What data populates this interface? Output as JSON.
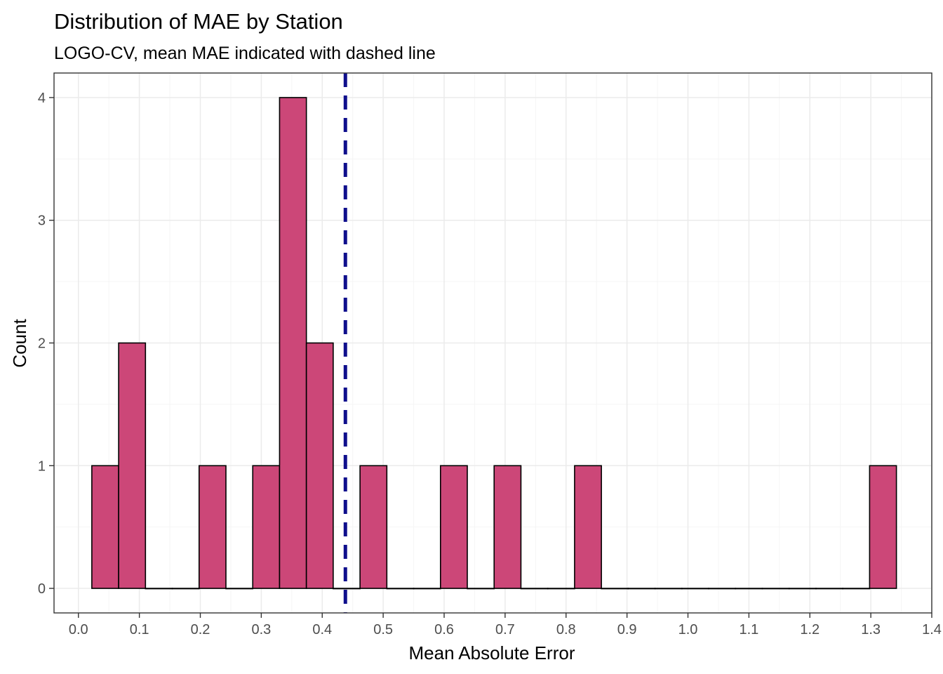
{
  "chart_data": {
    "type": "bar",
    "subtype": "histogram",
    "title": "Distribution of MAE by Station",
    "subtitle": "LOGO-CV, mean MAE indicated with dashed line",
    "xlabel": "Mean Absolute Error",
    "ylabel": "Count",
    "xlim": [
      -0.04,
      1.4
    ],
    "ylim": [
      -0.2,
      4.2
    ],
    "x_ticks": [
      "0.0",
      "0.1",
      "0.2",
      "0.3",
      "0.4",
      "0.5",
      "0.6",
      "0.7",
      "0.8",
      "0.9",
      "1.0",
      "1.1",
      "1.2",
      "1.3",
      "1.4"
    ],
    "y_ticks": [
      "0",
      "1",
      "2",
      "3",
      "4"
    ],
    "bin_width": 0.044,
    "bins": [
      {
        "x0": 0.022,
        "x1": 0.066,
        "count": 1
      },
      {
        "x0": 0.066,
        "x1": 0.11,
        "count": 2
      },
      {
        "x0": 0.11,
        "x1": 0.154,
        "count": 0
      },
      {
        "x0": 0.154,
        "x1": 0.198,
        "count": 0
      },
      {
        "x0": 0.198,
        "x1": 0.242,
        "count": 1
      },
      {
        "x0": 0.242,
        "x1": 0.286,
        "count": 0
      },
      {
        "x0": 0.286,
        "x1": 0.33,
        "count": 1
      },
      {
        "x0": 0.33,
        "x1": 0.374,
        "count": 4
      },
      {
        "x0": 0.374,
        "x1": 0.418,
        "count": 2
      },
      {
        "x0": 0.418,
        "x1": 0.462,
        "count": 0
      },
      {
        "x0": 0.462,
        "x1": 0.506,
        "count": 1
      },
      {
        "x0": 0.506,
        "x1": 0.55,
        "count": 0
      },
      {
        "x0": 0.55,
        "x1": 0.594,
        "count": 0
      },
      {
        "x0": 0.594,
        "x1": 0.638,
        "count": 1
      },
      {
        "x0": 0.638,
        "x1": 0.682,
        "count": 0
      },
      {
        "x0": 0.682,
        "x1": 0.726,
        "count": 1
      },
      {
        "x0": 0.726,
        "x1": 0.77,
        "count": 0
      },
      {
        "x0": 0.77,
        "x1": 0.814,
        "count": 0
      },
      {
        "x0": 0.814,
        "x1": 0.858,
        "count": 1
      },
      {
        "x0": 0.858,
        "x1": 0.902,
        "count": 0
      },
      {
        "x0": 0.902,
        "x1": 0.946,
        "count": 0
      },
      {
        "x0": 0.946,
        "x1": 0.99,
        "count": 0
      },
      {
        "x0": 0.99,
        "x1": 1.034,
        "count": 0
      },
      {
        "x0": 1.034,
        "x1": 1.078,
        "count": 0
      },
      {
        "x0": 1.078,
        "x1": 1.122,
        "count": 0
      },
      {
        "x0": 1.122,
        "x1": 1.166,
        "count": 0
      },
      {
        "x0": 1.166,
        "x1": 1.21,
        "count": 0
      },
      {
        "x0": 1.21,
        "x1": 1.254,
        "count": 0
      },
      {
        "x0": 1.254,
        "x1": 1.298,
        "count": 0
      },
      {
        "x0": 1.298,
        "x1": 1.342,
        "count": 1
      }
    ],
    "mean_line": {
      "x": 0.438,
      "style": "dashed",
      "color": "#0f0f8c"
    },
    "grid": true,
    "legend": "none",
    "colors": {
      "bar_fill": "#cc4778",
      "bar_stroke": "#000000",
      "panel_border": "#333333",
      "grid_major": "#ebebeb",
      "grid_minor": "#f5f5f5",
      "tick_label": "#4d4d4d",
      "text": "#000000"
    }
  }
}
